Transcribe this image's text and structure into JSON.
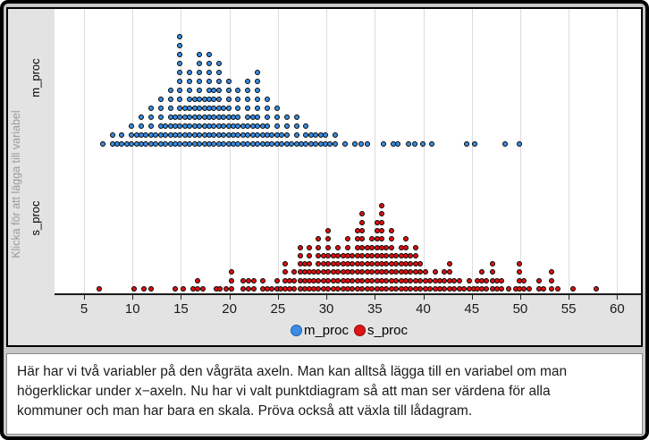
{
  "sidebar": {
    "hint_label": "Klicka för att lägga till variabel",
    "top_variable": "m_proc",
    "bottom_variable": "s_proc"
  },
  "axis": {
    "min": 5,
    "max": 60,
    "ticks": [
      5,
      10,
      15,
      20,
      25,
      30,
      35,
      40,
      45,
      50,
      55,
      60
    ]
  },
  "legend": {
    "items": [
      {
        "label": "m_proc",
        "color": "#3a8ee4",
        "edge": "#1b5fae"
      },
      {
        "label": "s_proc",
        "color": "#e01414",
        "edge": "#8f0808"
      }
    ]
  },
  "colors": {
    "blue_dot": "#3a8ee4",
    "red_dot": "#dd1010",
    "dot_outline": "#000000",
    "plot_background": "#ffffff",
    "panel_gray": "#e3e3e3",
    "gridline": "#dcdcdc"
  },
  "description": {
    "lines": [
      "Här har vi två variabler på den vågräta axeln. Man kan alltså lägga till en variabel om man",
      "högerklickar under x−axeln. Nu har vi valt punktdiagram så att man ser värdena för alla",
      "kommuner och man har bara en skala. Pröva också att växla till lådagram."
    ]
  },
  "chart_data": {
    "type": "scatter",
    "subtype": "stacked-dot-plot",
    "xlabel": "",
    "ylabel": "",
    "xlim": [
      2.5,
      62.5
    ],
    "grid": "vertical",
    "legend_position": "bottom-center",
    "series": [
      {
        "name": "m_proc",
        "color": "#3a8ee4",
        "points_value_count": [
          [
            7,
            1
          ],
          [
            8,
            2
          ],
          [
            8.5,
            1
          ],
          [
            9,
            2
          ],
          [
            9.5,
            1
          ],
          [
            10,
            3
          ],
          [
            10.5,
            2
          ],
          [
            11,
            4
          ],
          [
            11.5,
            2
          ],
          [
            12,
            5
          ],
          [
            12.5,
            2
          ],
          [
            13,
            6
          ],
          [
            13.5,
            3
          ],
          [
            14,
            7
          ],
          [
            14.5,
            4
          ],
          [
            15,
            13
          ],
          [
            15.5,
            5
          ],
          [
            16,
            9
          ],
          [
            16.5,
            6
          ],
          [
            17,
            11
          ],
          [
            17.5,
            6
          ],
          [
            18,
            11
          ],
          [
            18.5,
            7
          ],
          [
            19,
            10
          ],
          [
            19.5,
            5
          ],
          [
            20,
            8
          ],
          [
            20.5,
            4
          ],
          [
            21,
            7
          ],
          [
            21.5,
            3
          ],
          [
            22,
            8
          ],
          [
            22.5,
            4
          ],
          [
            23,
            9
          ],
          [
            23.5,
            3
          ],
          [
            24,
            6
          ],
          [
            24.5,
            2
          ],
          [
            25,
            5
          ],
          [
            25.5,
            2
          ],
          [
            26,
            4
          ],
          [
            26.5,
            1
          ],
          [
            27,
            4
          ],
          [
            27.5,
            1
          ],
          [
            28,
            3
          ],
          [
            28.5,
            2
          ],
          [
            29,
            2
          ],
          [
            29.5,
            2
          ],
          [
            30,
            2
          ],
          [
            30.5,
            1
          ],
          [
            31,
            2
          ],
          [
            32,
            1
          ],
          [
            33,
            1
          ],
          [
            33.7,
            1
          ],
          [
            34.3,
            1
          ],
          [
            36,
            1
          ],
          [
            37,
            1
          ],
          [
            37.5,
            1
          ],
          [
            38.6,
            1
          ],
          [
            39.2,
            1
          ],
          [
            40,
            1
          ],
          [
            41,
            1
          ],
          [
            44.6,
            1
          ],
          [
            45.4,
            1
          ],
          [
            48.5,
            1
          ],
          [
            50,
            1
          ]
        ]
      },
      {
        "name": "s_proc",
        "color": "#dd1010",
        "points_value_count": [
          [
            6.7,
            1
          ],
          [
            10.3,
            1
          ],
          [
            11.3,
            1
          ],
          [
            12,
            1
          ],
          [
            14.5,
            1
          ],
          [
            15.3,
            1
          ],
          [
            16.3,
            1
          ],
          [
            16.8,
            2
          ],
          [
            17.4,
            1
          ],
          [
            18.7,
            1
          ],
          [
            19.1,
            1
          ],
          [
            19.8,
            1
          ],
          [
            20.3,
            3
          ],
          [
            21.5,
            2
          ],
          [
            22.1,
            2
          ],
          [
            22.6,
            2
          ],
          [
            23.5,
            2
          ],
          [
            24,
            1
          ],
          [
            24.5,
            1
          ],
          [
            25,
            2
          ],
          [
            25.4,
            1
          ],
          [
            25.8,
            4
          ],
          [
            26.3,
            2
          ],
          [
            26.8,
            3
          ],
          [
            27.4,
            6
          ],
          [
            27.9,
            4
          ],
          [
            28.3,
            6
          ],
          [
            28.8,
            3
          ],
          [
            29.3,
            7
          ],
          [
            29.8,
            5
          ],
          [
            30.3,
            8
          ],
          [
            30.8,
            5
          ],
          [
            31.3,
            6
          ],
          [
            31.8,
            5
          ],
          [
            32.3,
            7
          ],
          [
            32.8,
            5
          ],
          [
            33.3,
            8
          ],
          [
            33.8,
            10
          ],
          [
            34.3,
            6
          ],
          [
            34.8,
            7
          ],
          [
            35.3,
            9
          ],
          [
            35.8,
            11
          ],
          [
            36.3,
            6
          ],
          [
            36.8,
            8
          ],
          [
            37.3,
            5
          ],
          [
            37.8,
            6
          ],
          [
            38.3,
            7
          ],
          [
            38.8,
            5
          ],
          [
            39.3,
            6
          ],
          [
            39.8,
            4
          ],
          [
            40.3,
            3
          ],
          [
            40.8,
            2
          ],
          [
            41.3,
            3
          ],
          [
            41.8,
            2
          ],
          [
            42.3,
            3
          ],
          [
            42.8,
            4
          ],
          [
            43.3,
            2
          ],
          [
            43.8,
            2
          ],
          [
            44.3,
            1
          ],
          [
            44.8,
            2
          ],
          [
            45.3,
            1
          ],
          [
            45.7,
            2
          ],
          [
            46.1,
            3
          ],
          [
            46.6,
            2
          ],
          [
            47.2,
            4
          ],
          [
            47.7,
            2
          ],
          [
            48.2,
            2
          ],
          [
            48.9,
            1
          ],
          [
            49.6,
            1
          ],
          [
            50,
            4
          ],
          [
            50.5,
            2
          ],
          [
            51,
            1
          ],
          [
            52,
            2
          ],
          [
            52.5,
            1
          ],
          [
            53.3,
            3
          ],
          [
            54,
            1
          ],
          [
            55.5,
            1
          ],
          [
            57.9,
            1
          ]
        ]
      }
    ]
  }
}
